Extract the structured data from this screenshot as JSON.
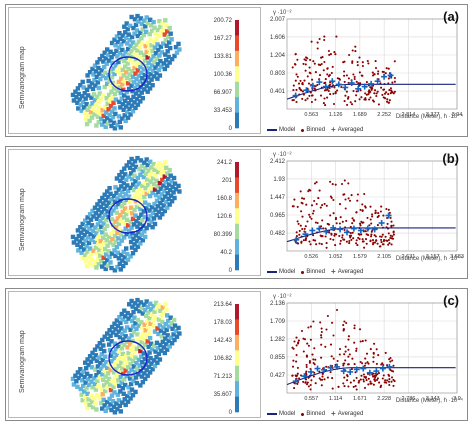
{
  "panels": [
    {
      "label": "(a)",
      "map_title": "Semivariogram map",
      "colorbar_ticks": [
        "200.72",
        "167.27",
        "133.81",
        "100.36",
        "66.907",
        "33.453",
        "0"
      ],
      "y_unit": "γ ·10⁻²",
      "x_label": "Distance (Meter), h ·10⁻⁴",
      "legend": {
        "model": "Model",
        "binned": "Binned",
        "averaged": "Averaged"
      }
    },
    {
      "label": "(b)",
      "map_title": "Semivariogram map",
      "colorbar_ticks": [
        "241.2",
        "201",
        "160.8",
        "120.6",
        "80.399",
        "40.2",
        "0"
      ],
      "y_unit": "γ ·10⁻²",
      "x_label": "Distance (Meter), h ·10⁻⁴",
      "legend": {
        "model": "Model",
        "binned": "Binned",
        "averaged": "Averaged"
      }
    },
    {
      "label": "(c)",
      "map_title": "Semivariogram map",
      "colorbar_ticks": [
        "213.64",
        "178.03",
        "142.43",
        "106.82",
        "71.213",
        "35.607",
        "0"
      ],
      "y_unit": "γ ·10⁻²",
      "x_label": "Distance (Meter), h ·10⁻⁴",
      "legend": {
        "model": "Model",
        "binned": "Binned",
        "averaged": "Averaged"
      }
    }
  ],
  "colors": {
    "model": "#1a237e",
    "binned": "#8b0000",
    "averaged": "#1565c0",
    "circle": "#1a23c8",
    "colorbar": [
      "#2c7bb6",
      "#5fb3dc",
      "#a6dba0",
      "#ffff8c",
      "#fdae61",
      "#e8492c",
      "#b2182b"
    ]
  },
  "chart_data": [
    {
      "type": "scatter",
      "ylim": [
        0,
        2.007
      ],
      "y_ticks": [
        "0.401",
        "0.803",
        "1.204",
        "1.606",
        "2.007"
      ],
      "xlim": [
        0,
        3.94
      ],
      "x_ticks": [
        "0.563",
        "1.126",
        "1.689",
        "2.252",
        "2.814",
        "3.377",
        "3.94"
      ],
      "model": {
        "nugget": 0.22,
        "range": 1.5,
        "sill": 0.55
      },
      "averaged": {
        "x": [
          0.2,
          0.45,
          0.6,
          0.75,
          0.9,
          1.05,
          1.2,
          1.35,
          1.5,
          1.65,
          1.8,
          1.95,
          2.1,
          2.25,
          2.4
        ],
        "y": [
          0.3,
          0.42,
          0.52,
          0.6,
          0.5,
          0.62,
          0.55,
          0.48,
          0.58,
          0.45,
          0.5,
          0.56,
          0.62,
          0.72,
          0.75
        ]
      },
      "binned": {
        "count": 260,
        "xmax": 2.4,
        "spread": 1.6,
        "seed": 11
      }
    },
    {
      "type": "scatter",
      "ylim": [
        0,
        2.412
      ],
      "y_ticks": [
        "0.482",
        "0.965",
        "1.447",
        "1.93",
        "2.412"
      ],
      "xlim": [
        0,
        3.683
      ],
      "x_ticks": [
        "0.526",
        "1.052",
        "1.579",
        "2.105",
        "2.631",
        "3.157",
        "3.683"
      ],
      "model": {
        "nugget": 0.25,
        "range": 1.4,
        "sill": 0.62
      },
      "averaged": {
        "x": [
          0.2,
          0.4,
          0.55,
          0.7,
          0.85,
          1.0,
          1.15,
          1.3,
          1.45,
          1.6,
          1.75,
          1.9,
          2.05,
          2.2
        ],
        "y": [
          0.3,
          0.45,
          0.55,
          0.6,
          0.52,
          0.62,
          0.58,
          0.5,
          0.6,
          0.55,
          0.6,
          0.58,
          0.75,
          0.95
        ]
      },
      "binned": {
        "count": 260,
        "xmax": 2.2,
        "spread": 1.8,
        "seed": 27
      }
    },
    {
      "type": "scatter",
      "ylim": [
        0,
        2.136
      ],
      "y_ticks": [
        "0.427",
        "0.855",
        "1.282",
        "1.709",
        "2.136"
      ],
      "xlim": [
        0,
        3.9
      ],
      "x_ticks": [
        "0.557",
        "1.114",
        "1.671",
        "2.228",
        "2.786",
        "3.343",
        "3.9"
      ],
      "model": {
        "nugget": 0.2,
        "range": 1.5,
        "sill": 0.6
      },
      "averaged": {
        "x": [
          0.2,
          0.4,
          0.55,
          0.7,
          0.85,
          1.0,
          1.15,
          1.3,
          1.45,
          1.6,
          1.75,
          1.9,
          2.05,
          2.2,
          2.35
        ],
        "y": [
          0.28,
          0.4,
          0.5,
          0.58,
          0.55,
          0.6,
          0.62,
          0.52,
          0.5,
          0.56,
          0.58,
          0.48,
          0.52,
          0.58,
          0.62
        ]
      },
      "binned": {
        "count": 250,
        "xmax": 2.35,
        "spread": 1.7,
        "seed": 43
      }
    }
  ]
}
